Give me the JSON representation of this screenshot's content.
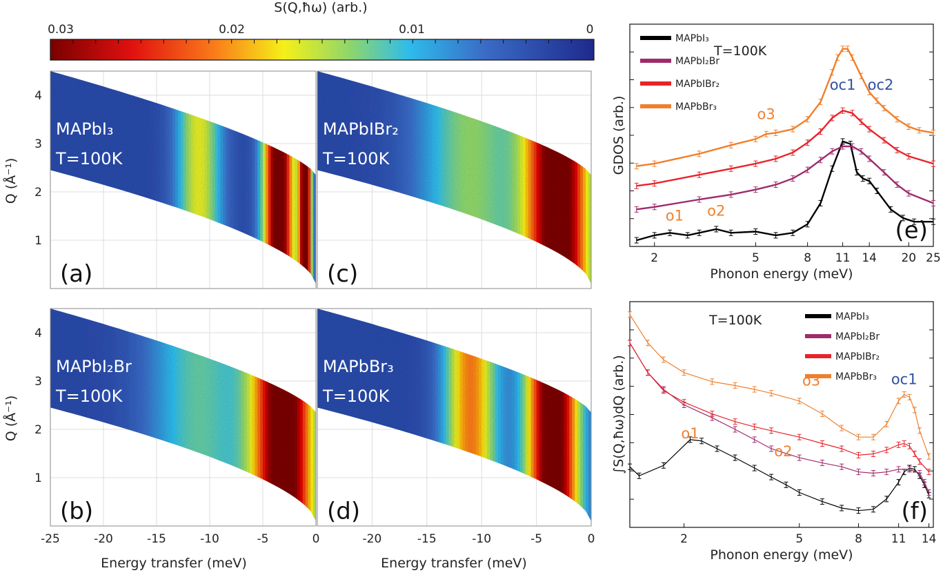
{
  "figure": {
    "colorbar": {
      "label": "S(Q,ħω) (arb.)",
      "ticks": [
        "0.03",
        "0.02",
        "0.01",
        "0"
      ],
      "range": [
        0.03,
        0
      ]
    },
    "maps_common": {
      "xlabel": "Energy transfer (meV)",
      "ylabel": "Q (Å⁻¹)",
      "temperature": "T=100K",
      "xlim": [
        -25,
        0
      ],
      "ylim": [
        0,
        4.5
      ],
      "xticks": [
        "-25",
        "-20",
        "-15",
        "-10",
        "-5",
        "0"
      ],
      "xticks_right": [
        "-20",
        "-15",
        "-10",
        "-5",
        "0"
      ],
      "yticks": [
        "1",
        "2",
        "3",
        "4"
      ]
    },
    "maps": [
      {
        "tag": "(a)",
        "sample": "MAPbI₃",
        "bands": [
          {
            "center": -11,
            "width": 2.2,
            "strength": 0.45
          },
          {
            "center": -3.5,
            "width": 1.5,
            "strength": 1.0
          },
          {
            "center": -1,
            "width": 0.6,
            "strength": 1.0
          }
        ]
      },
      {
        "tag": "(b)",
        "sample": "MAPbI₂Br",
        "bands": [
          {
            "center": -11,
            "width": 5,
            "strength": 0.3
          },
          {
            "center": -3,
            "width": 3,
            "strength": 1.0
          }
        ]
      },
      {
        "tag": "(c)",
        "sample": "MAPbIBr₂",
        "bands": [
          {
            "center": -11,
            "width": 5,
            "strength": 0.35
          },
          {
            "center": -3,
            "width": 3,
            "strength": 1.0
          }
        ]
      },
      {
        "tag": "(d)",
        "sample": "MAPbBr₃",
        "bands": [
          {
            "center": -11,
            "width": 2.5,
            "strength": 0.6
          },
          {
            "center": -3.5,
            "width": 2.5,
            "strength": 1.0
          }
        ]
      }
    ],
    "panel_e": {
      "tag": "(e)",
      "xlabel": "Phonon energy (meV)",
      "ylabel": "GDOS (arb.)",
      "temperature": "T=100K",
      "xscale": "log",
      "xlim": [
        1.6,
        25
      ],
      "xticks": [
        "2",
        "5",
        "8",
        "11",
        "14",
        "20",
        "25"
      ],
      "annotations": [
        {
          "text": "o1",
          "x": 2.4,
          "y": 0.16,
          "color": "#F07F2C"
        },
        {
          "text": "o2",
          "x": 3.5,
          "y": 0.2,
          "color": "#F07F2C"
        },
        {
          "text": "o3",
          "x": 5.5,
          "y": 0.98,
          "color": "#F07F2C"
        },
        {
          "text": "oc1",
          "x": 11,
          "y": 1.22,
          "color": "#2F4FA2"
        },
        {
          "text": "oc2",
          "x": 15.5,
          "y": 1.22,
          "color": "#2F4FA2"
        }
      ]
    },
    "panel_f": {
      "tag": "(f)",
      "xlabel": "Phonon energy (meV)",
      "ylabel": "∫S(Q,ħω)dQ (arb.)",
      "temperature": "T=100K",
      "xscale": "log",
      "xlim": [
        1.3,
        14.5
      ],
      "xticks": [
        "2",
        "5",
        "8",
        "11",
        "14"
      ],
      "annotations": [
        {
          "text": "o1",
          "x": 2.1,
          "y": 0.64,
          "color": "#F07F2C"
        },
        {
          "text": "o2",
          "x": 4.4,
          "y": 0.5,
          "color": "#F07F2C"
        },
        {
          "text": "o3",
          "x": 5.5,
          "y": 1.05,
          "color": "#F07F2C"
        },
        {
          "text": "oc1",
          "x": 11.5,
          "y": 1.06,
          "color": "#2F4FA2"
        }
      ]
    }
  },
  "chart_data": [
    {
      "type": "heatmap",
      "panels": [
        "(a) MAPbI₃",
        "(b) MAPbI₂Br",
        "(c) MAPbIBr₂",
        "(d) MAPbBr₃"
      ],
      "xlabel": "Energy transfer (meV)",
      "ylabel": "Q (Å⁻¹)",
      "xlim": [
        -25,
        0
      ],
      "ylim": [
        0,
        4.5
      ],
      "colorbar_label": "S(Q,ħω) (arb.)",
      "colorbar_range": [
        0.03,
        0
      ]
    },
    {
      "type": "line",
      "title": "",
      "xlabel": "Phonon energy (meV)",
      "ylabel": "GDOS (arb.)",
      "xscale": "log",
      "xlim": [
        1.6,
        25
      ],
      "legend": "top-left",
      "series": [
        {
          "name": "MAPbI₃",
          "color": "#000000",
          "x": [
            1.7,
            2.0,
            2.3,
            2.7,
            3.0,
            3.5,
            4.0,
            5.0,
            6.0,
            7.0,
            8.0,
            9.0,
            10.0,
            11.0,
            11.8,
            12.5,
            13.2,
            14.0,
            15.0,
            17.0,
            19.0,
            21.0,
            25.0
          ],
          "y": [
            0.0,
            0.04,
            0.06,
            0.04,
            0.06,
            0.09,
            0.06,
            0.07,
            0.04,
            0.06,
            0.13,
            0.3,
            0.58,
            0.8,
            0.78,
            0.55,
            0.5,
            0.48,
            0.4,
            0.25,
            0.18,
            0.15,
            0.15
          ]
        },
        {
          "name": "MAPbI₂Br",
          "color": "#9E2B6B",
          "x": [
            1.7,
            2.0,
            3.0,
            4.0,
            5.0,
            6.0,
            7.0,
            8.0,
            9.0,
            10.0,
            11.0,
            12.0,
            13.0,
            14.0,
            16.0,
            18.0,
            20.0,
            25.0
          ],
          "y": [
            0.25,
            0.27,
            0.33,
            0.37,
            0.41,
            0.45,
            0.5,
            0.57,
            0.65,
            0.72,
            0.76,
            0.76,
            0.72,
            0.66,
            0.55,
            0.45,
            0.38,
            0.3
          ]
        },
        {
          "name": "MAPbIBr₂",
          "color": "#E8232A",
          "x": [
            1.7,
            2.0,
            3.0,
            4.0,
            5.0,
            6.0,
            7.0,
            8.0,
            9.0,
            10.0,
            11.0,
            12.0,
            13.0,
            14.0,
            16.0,
            18.0,
            20.0,
            25.0
          ],
          "y": [
            0.44,
            0.46,
            0.53,
            0.58,
            0.62,
            0.66,
            0.71,
            0.79,
            0.88,
            0.99,
            1.05,
            1.03,
            0.96,
            0.9,
            0.81,
            0.73,
            0.68,
            0.62
          ]
        },
        {
          "name": "MAPbBr₃",
          "color": "#F07F2C",
          "x": [
            1.7,
            2.0,
            3.0,
            4.0,
            5.0,
            5.5,
            6.0,
            7.0,
            8.0,
            9.0,
            10.0,
            10.5,
            11.0,
            11.5,
            12.0,
            13.0,
            14.0,
            15.0,
            16.0,
            18.0,
            20.0,
            22.0,
            25.0
          ],
          "y": [
            0.6,
            0.62,
            0.7,
            0.77,
            0.82,
            0.86,
            0.87,
            0.9,
            0.98,
            1.12,
            1.36,
            1.48,
            1.55,
            1.55,
            1.48,
            1.33,
            1.2,
            1.13,
            1.07,
            0.98,
            0.92,
            0.89,
            0.87
          ]
        }
      ],
      "annotations": [
        "o1",
        "o2",
        "o3",
        "oc1",
        "oc2"
      ]
    },
    {
      "type": "line",
      "title": "",
      "xlabel": "Phonon energy (meV)",
      "ylabel": "∫S(Q,ħω)dQ (arb.)",
      "xscale": "log",
      "xlim": [
        1.3,
        14.5
      ],
      "legend": "top-right",
      "series": [
        {
          "name": "MAPbI₃",
          "color": "#000000",
          "x": [
            1.3,
            1.4,
            1.7,
            2.1,
            2.3,
            2.6,
            3.0,
            3.5,
            4.0,
            4.5,
            5.0,
            6.0,
            7.0,
            8.0,
            9.0,
            10.0,
            11.0,
            11.5,
            12.0,
            12.5,
            13.0,
            13.5,
            14.0
          ],
          "y": [
            0.42,
            0.35,
            0.43,
            0.63,
            0.62,
            0.56,
            0.49,
            0.41,
            0.34,
            0.28,
            0.22,
            0.15,
            0.1,
            0.08,
            0.09,
            0.17,
            0.3,
            0.38,
            0.41,
            0.4,
            0.35,
            0.28,
            0.2
          ]
        },
        {
          "name": "MAPbI₂Br",
          "color": "#9E2B6B",
          "x": [
            1.3,
            1.5,
            1.7,
            2.0,
            2.5,
            3.0,
            3.5,
            4.0,
            5.0,
            6.0,
            7.0,
            8.0,
            9.0,
            10.0,
            11.0,
            12.0,
            13.0,
            13.5,
            14.0
          ],
          "y": [
            1.38,
            1.15,
            1.02,
            0.9,
            0.8,
            0.71,
            0.63,
            0.56,
            0.49,
            0.45,
            0.42,
            0.38,
            0.37,
            0.38,
            0.4,
            0.4,
            0.37,
            0.3,
            0.22
          ]
        },
        {
          "name": "MAPbIBr₂",
          "color": "#E8232A",
          "x": [
            1.3,
            1.5,
            1.7,
            2.0,
            2.5,
            3.0,
            3.5,
            4.0,
            5.0,
            6.0,
            7.0,
            8.0,
            9.0,
            10.0,
            11.0,
            11.5,
            12.0,
            12.5,
            13.0,
            14.0
          ],
          "y": [
            1.38,
            1.15,
            1.01,
            0.92,
            0.83,
            0.77,
            0.73,
            0.7,
            0.65,
            0.6,
            0.56,
            0.51,
            0.52,
            0.55,
            0.59,
            0.6,
            0.58,
            0.52,
            0.46,
            0.38
          ]
        },
        {
          "name": "MAPbBr₃",
          "color": "#F07F2C",
          "x": [
            1.3,
            1.5,
            1.7,
            2.0,
            2.5,
            3.0,
            3.5,
            4.0,
            5.0,
            6.0,
            7.0,
            8.0,
            9.0,
            10.0,
            11.0,
            11.5,
            12.0,
            12.5,
            13.0,
            14.0
          ],
          "y": [
            1.6,
            1.38,
            1.25,
            1.15,
            1.08,
            1.05,
            1.02,
            0.99,
            0.93,
            0.83,
            0.72,
            0.65,
            0.65,
            0.75,
            0.93,
            0.98,
            0.96,
            0.86,
            0.7,
            0.5
          ]
        }
      ],
      "annotations": [
        "o1",
        "o2",
        "o3",
        "oc1"
      ]
    }
  ]
}
